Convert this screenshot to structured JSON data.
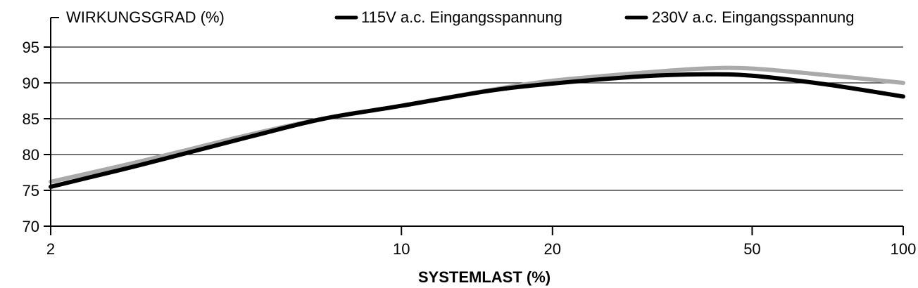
{
  "chart_data": {
    "type": "line",
    "ylabel": "WIRKUNGSGRAD (%)",
    "xlabel": "SYSTEMLAST (%)",
    "x_scale": "log",
    "xticks": [
      2,
      10,
      20,
      50,
      100
    ],
    "xlim": [
      2,
      100
    ],
    "ylim": [
      70,
      98
    ],
    "yticks": [
      70,
      75,
      80,
      85,
      90,
      95
    ],
    "grid": true,
    "legend_position": "top",
    "series": [
      {
        "name": "115V a.c. Eingangsspannung",
        "color": "#000000",
        "x": [
          2,
          3,
          5,
          7,
          10,
          15,
          20,
          30,
          40,
          50,
          70,
          100
        ],
        "y": [
          75.5,
          78.5,
          82.5,
          85.0,
          86.8,
          88.9,
          89.9,
          90.9,
          91.2,
          91.0,
          89.8,
          88.1
        ]
      },
      {
        "name": "230V a.c. Eingangsspannung",
        "color": "#aaaaaa",
        "x": [
          2,
          3,
          5,
          7,
          10,
          15,
          20,
          30,
          40,
          50,
          70,
          100
        ],
        "y": [
          76.2,
          79.0,
          82.8,
          85.0,
          86.8,
          89.0,
          90.3,
          91.4,
          92.0,
          92.0,
          91.1,
          90.0
        ]
      }
    ]
  }
}
